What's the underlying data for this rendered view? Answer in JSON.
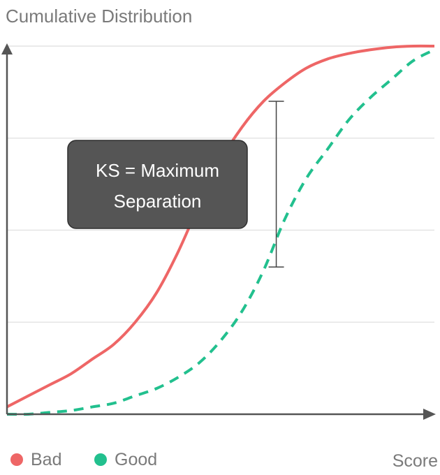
{
  "chart_data": {
    "type": "line",
    "title": "Cumulative Distribution",
    "xlabel": "Score",
    "ylabel": "",
    "xlim": [
      0,
      1
    ],
    "ylim": [
      0,
      1
    ],
    "grid": true,
    "legend_position": "bottom-left",
    "series": [
      {
        "name": "Bad",
        "color": "#ee6666",
        "style": "solid",
        "x": [
          0.0,
          0.05,
          0.1,
          0.15,
          0.2,
          0.25,
          0.3,
          0.35,
          0.4,
          0.45,
          0.5,
          0.55,
          0.6,
          0.65,
          0.7,
          0.75,
          0.8,
          0.85,
          0.9,
          0.95,
          1.0
        ],
        "y": [
          0.02,
          0.05,
          0.08,
          0.11,
          0.15,
          0.19,
          0.25,
          0.33,
          0.44,
          0.57,
          0.69,
          0.78,
          0.85,
          0.9,
          0.94,
          0.965,
          0.98,
          0.99,
          0.997,
          1.0,
          1.0
        ]
      },
      {
        "name": "Good",
        "color": "#22c08e",
        "style": "dashed",
        "x": [
          0.0,
          0.05,
          0.1,
          0.15,
          0.2,
          0.25,
          0.3,
          0.35,
          0.4,
          0.45,
          0.5,
          0.55,
          0.6,
          0.65,
          0.7,
          0.75,
          0.8,
          0.85,
          0.9,
          0.95,
          1.0
        ],
        "y": [
          0.0,
          0.0,
          0.005,
          0.01,
          0.02,
          0.03,
          0.05,
          0.07,
          0.1,
          0.14,
          0.2,
          0.28,
          0.39,
          0.53,
          0.64,
          0.72,
          0.8,
          0.86,
          0.91,
          0.96,
          0.99
        ]
      }
    ],
    "ks": {
      "x": 0.63,
      "y_top": 0.85,
      "y_bottom": 0.4
    },
    "annotation": {
      "lines": [
        "KS = Maximum",
        "Separation"
      ],
      "box_color": "#555555"
    }
  }
}
